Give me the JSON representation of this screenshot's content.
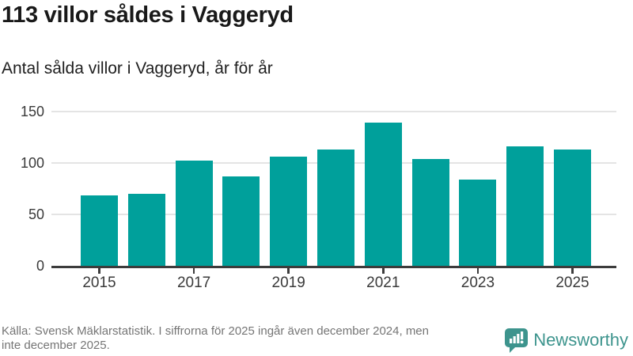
{
  "header": {
    "title": "113 villor såldes i Vaggeryd",
    "subtitle": "Antal sålda villor i Vaggeryd, år för år"
  },
  "chart_data": {
    "type": "bar",
    "categories": [
      "2015",
      "2016",
      "2017",
      "2018",
      "2019",
      "2020",
      "2021",
      "2022",
      "2023",
      "2024",
      "2025"
    ],
    "values": [
      68,
      70,
      102,
      87,
      106,
      113,
      139,
      104,
      84,
      116,
      113
    ],
    "series_name": "Antal sålda villor i Vaggeryd",
    "title": "113 villor såldes i Vaggeryd",
    "xlabel": "",
    "ylabel": "",
    "ylim": [
      0,
      155
    ],
    "y_ticks": [
      0,
      50,
      100,
      150
    ],
    "x_tick_labels": [
      "2015",
      "2017",
      "2019",
      "2021",
      "2023",
      "2025"
    ],
    "grid": "horizontal",
    "legend": "none",
    "bar_color": "#00a09b"
  },
  "footer": {
    "source_text": "Källa: Svensk Mäklarstatistik. I siffrorna för 2025 ingår även december 2024, men inte december 2025.",
    "source_line1": "Källa: Svensk Mäklarstatistik. I siffrorna för 2025 ingår även december 2024, men",
    "source_line2": "inte december 2025."
  },
  "branding": {
    "name": "Newsworthy",
    "icon": "speech-bubble-bar-chart-icon",
    "color": "#3d948d"
  },
  "colors": {
    "bar": "#00a09b",
    "axis": "#3c3c3c",
    "gridline": "#e4e4e4",
    "title_text": "#191919",
    "footer_text": "#757575"
  }
}
